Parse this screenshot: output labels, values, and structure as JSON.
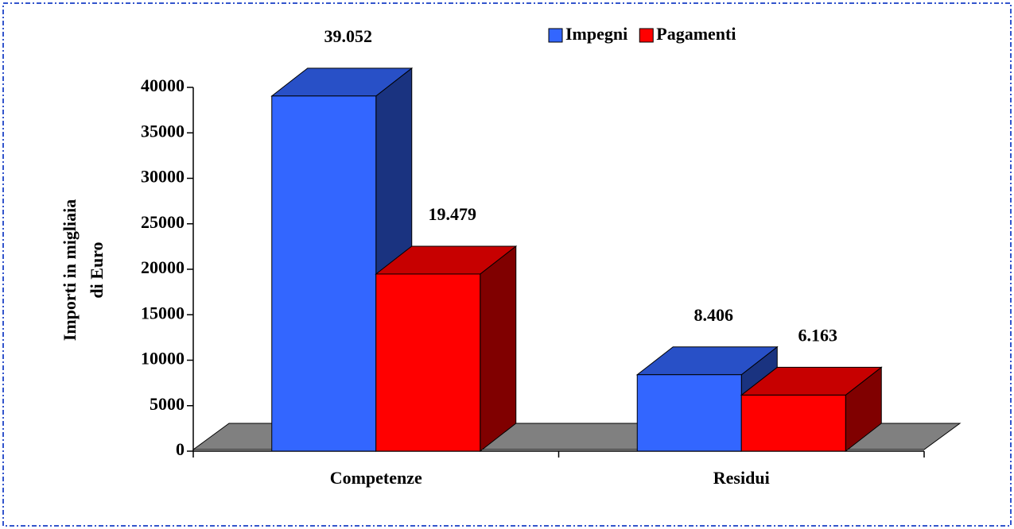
{
  "chart_data": {
    "type": "bar3d",
    "categories": [
      "Competenze",
      "Residui"
    ],
    "series": [
      {
        "name": "Impegni",
        "color": "#3366ff",
        "values": [
          39052,
          8406
        ],
        "value_labels": [
          "39.052",
          "8.406"
        ]
      },
      {
        "name": "Pagamenti",
        "color": "#ff0000",
        "values": [
          19479,
          6163
        ],
        "value_labels": [
          "19.479",
          "6.163"
        ]
      }
    ],
    "ylabel": [
      "Importi in migliaia",
      "di Euro"
    ],
    "ylim": [
      0,
      40000
    ],
    "yticks": [
      0,
      5000,
      10000,
      15000,
      20000,
      25000,
      30000,
      35000,
      40000
    ],
    "legend": "top",
    "floor_color": "#808080"
  }
}
